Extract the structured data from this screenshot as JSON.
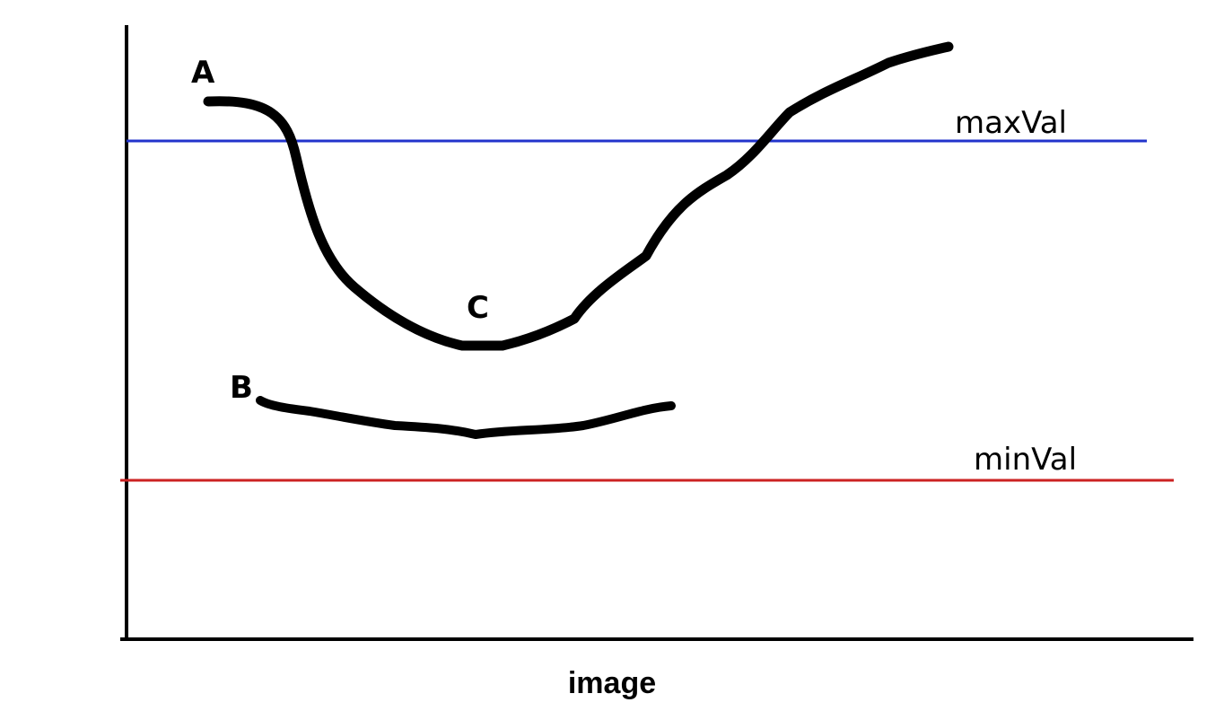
{
  "thresholds": {
    "max": {
      "label": "maxVal",
      "color": "#2233cc"
    },
    "min": {
      "label": "minVal",
      "color": "#cc2222"
    }
  },
  "curves": {
    "a": {
      "label": "A"
    },
    "b": {
      "label": "B"
    },
    "c": {
      "label": "C"
    }
  },
  "caption": "image",
  "colors": {
    "axis": "#000000",
    "curve": "#000000"
  }
}
